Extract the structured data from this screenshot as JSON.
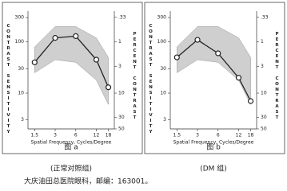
{
  "chart_data": [
    {
      "type": "line",
      "caption": "图 a",
      "group": "(正常对照组)",
      "x_label": "Spatial Frequency, Cycles/Degree",
      "y_label": "CONTRAST SENSITIVITY",
      "y2_label": "PERCENT CONTRAST",
      "x": [
        1.5,
        3,
        6,
        12,
        18
      ],
      "xlim": [
        1.2,
        22
      ],
      "log_x": true,
      "ylim": [
        2,
        400
      ],
      "yticks": [
        300,
        100,
        30,
        10,
        3
      ],
      "log_y": true,
      "y2lim": [
        50,
        0.25
      ],
      "y2ticks": [
        {
          "value": 0.33,
          "label": ".33"
        },
        1,
        3,
        10,
        30,
        50
      ],
      "band": {
        "color": "#cfcfcf",
        "low": [
          25,
          45,
          40,
          18,
          6
        ],
        "high": [
          80,
          200,
          200,
          120,
          50
        ]
      },
      "series": [
        {
          "color": "#222222",
          "values": [
            40,
            120,
            130,
            45,
            13
          ]
        }
      ]
    },
    {
      "type": "line",
      "caption": "图 b",
      "group": "(DM 组)",
      "x_label": "Spatial Frequency, Cycles/Degree",
      "y_label": "CONTRAST SENSITIVITY",
      "y2_label": "PERCENT CONTRAST",
      "x": [
        1.5,
        3,
        6,
        12,
        18
      ],
      "xlim": [
        1.2,
        22
      ],
      "log_x": true,
      "ylim": [
        2,
        400
      ],
      "yticks": [
        300,
        100,
        30,
        10,
        3
      ],
      "log_y": true,
      "y2lim": [
        50,
        0.25
      ],
      "y2ticks": [
        {
          "value": 0.33,
          "label": ".33"
        },
        1,
        3,
        10,
        30,
        50
      ],
      "band": {
        "color": "#cfcfcf",
        "low": [
          25,
          45,
          40,
          18,
          6
        ],
        "high": [
          80,
          200,
          200,
          120,
          50
        ]
      },
      "series": [
        {
          "color": "#222222",
          "values": [
            50,
            110,
            60,
            20,
            7
          ]
        }
      ]
    }
  ],
  "footnote": "大庆油田总医院眼科，邮编：163001。"
}
